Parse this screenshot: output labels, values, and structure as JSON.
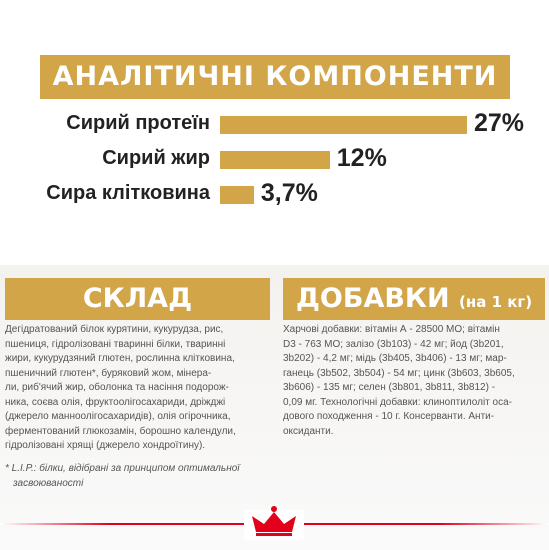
{
  "header": {
    "title": "АНАЛІТИЧНІ КОМПОНЕНТИ"
  },
  "chart_data": {
    "type": "bar",
    "categories": [
      "Сирий протеїн",
      "Сирий жир",
      "Сира клітковина"
    ],
    "values": [
      27,
      12,
      3.7
    ],
    "value_labels": [
      "27%",
      "12%",
      "3,7%"
    ],
    "color": "#d2a548"
  },
  "composition": {
    "title": "СКЛАД",
    "lines": [
      "Дегідратований білок курятини, кукурудза, рис,",
      "пшениця, гідролізовані тваринні білки, тваринні",
      "жири, кукурудзяний глютен, рослинна клітковина,",
      "пшеничний глютен*, буряковий жом, мінера-",
      "ли, риб'ячий жир, оболонка та насіння подорож-",
      "ника, соєва олія, фруктоолігосахариди, дріжджі",
      "(джерело манноолігосахаридів), олія огірочника,",
      "ферментований глюкозамін, борошно календули,",
      "гідролізовані хрящі (джерело хондроїтину)."
    ]
  },
  "additives": {
    "title": "ДОБАВКИ",
    "subtitle": "(на 1 кг)",
    "lines": [
      "Харчові добавки: вітамін А - 28500 МО; вітамін",
      "D3 - 763 МО; залізо (3b103) - 42 мг; йод (3b201,",
      "3b202) - 4,2 мг; мідь (3b405, 3b406) - 13 мг; мар-",
      "ганець (3b502, 3b504) - 54 мг; цинк (3b603, 3b605,",
      "3b606) - 135 мг; селен (3b801, 3b811, 3b812) -",
      "0,09 мг. Технологічні добавки: клиноптилоліт оса-",
      "дового походження - 10 г. Консерванти. Анти-",
      "оксиданти."
    ]
  },
  "footnote": {
    "lines": [
      "* L.I.P.: білки, відібрані за принципом оптимальної",
      "засвоюваності"
    ]
  }
}
